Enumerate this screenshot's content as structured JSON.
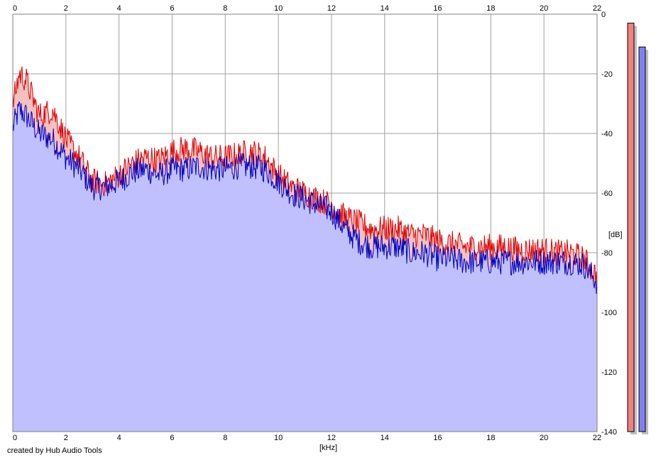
{
  "credit": "created by Hub Audio Tools",
  "chart_data": {
    "type": "area",
    "xlabel": "[kHz]",
    "ylabel": "[dB]",
    "xlim": [
      0,
      22
    ],
    "ylim": [
      -140,
      0
    ],
    "x_ticks": [
      0,
      2,
      4,
      6,
      8,
      10,
      12,
      14,
      16,
      18,
      20,
      22
    ],
    "y_ticks": [
      0,
      -20,
      -40,
      -60,
      -80,
      -100,
      -120,
      -140
    ],
    "grid": true,
    "colors": {
      "left_line": "#e00000",
      "left_fill": "#f4c0c0",
      "right_line": "#0000c0",
      "right_fill": "#c0c0ff",
      "grid": "#a0a0a0",
      "left_meter": "#f08080",
      "right_meter": "#8080f0"
    },
    "x": [
      0,
      0.25,
      0.5,
      1,
      1.5,
      2,
      2.5,
      3,
      3.5,
      4,
      4.5,
      5,
      5.5,
      6,
      6.5,
      7,
      7.5,
      8,
      8.5,
      9,
      9.5,
      10,
      10.5,
      11,
      11.5,
      12,
      12.5,
      13,
      13.5,
      14,
      14.5,
      15,
      15.5,
      16,
      16.5,
      17,
      17.5,
      18,
      18.5,
      19,
      19.5,
      20,
      20.5,
      21,
      21.5,
      22
    ],
    "series": [
      {
        "values": [
          -30,
          -20,
          -22,
          -34,
          -32,
          -42,
          -48,
          -56,
          -57,
          -54,
          -50,
          -48,
          -49,
          -46,
          -45,
          -46,
          -48,
          -48,
          -47,
          -46,
          -48,
          -54,
          -58,
          -60,
          -62,
          -64,
          -68,
          -70,
          -72,
          -72,
          -72,
          -74,
          -74,
          -76,
          -77,
          -78,
          -78,
          -78,
          -78,
          -79,
          -79,
          -79,
          -80,
          -80,
          -82,
          -88
        ]
      },
      {
        "values": [
          -38,
          -32,
          -34,
          -40,
          -42,
          -48,
          -52,
          -58,
          -58,
          -56,
          -53,
          -52,
          -54,
          -52,
          -52,
          -51,
          -52,
          -52,
          -51,
          -51,
          -52,
          -56,
          -60,
          -62,
          -64,
          -66,
          -72,
          -76,
          -78,
          -78,
          -78,
          -80,
          -80,
          -82,
          -82,
          -83,
          -83,
          -83,
          -83,
          -83,
          -83,
          -83,
          -83,
          -83,
          -84,
          -90
        ]
      }
    ],
    "meters": {
      "left_db": -3,
      "right_db": -11,
      "scale_db": [
        -140,
        0
      ]
    }
  }
}
